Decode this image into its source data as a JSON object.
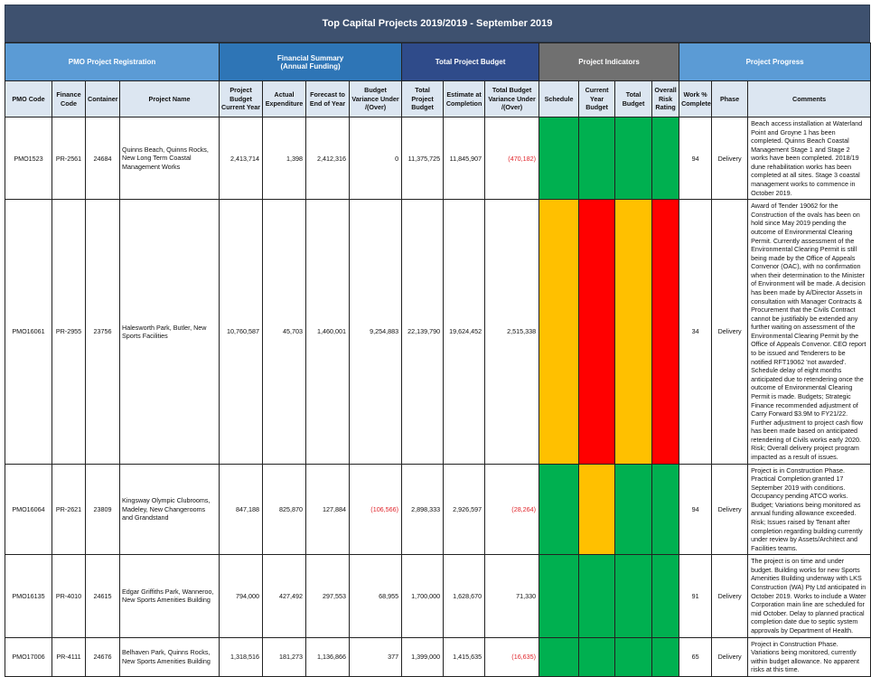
{
  "title": "Top Capital Projects 2019/2019 - September 2019",
  "groups": {
    "pmo": "PMO Project Registration",
    "financial": "Financial Summary\n(Annual Funding)",
    "total": "Total Project Budget",
    "indicators": "Project Indicators",
    "progress": "Project Progress"
  },
  "columns": {
    "pmo_code": "PMO Code",
    "finance_code": "Finance Code",
    "container": "Container",
    "project_name": "Project Name",
    "project_budget": "Project Budget Current Year",
    "actual_expenditure": "Actual Expenditure",
    "forecast": "Forecast to End of Year",
    "budget_variance": "Budget Variance Under /(Over)",
    "total_budget": "Total Project Budget",
    "estimate": "Estimate at Completion",
    "total_variance": "Total Budget Variance Under /(Over)",
    "schedule": "Schedule",
    "current_year_budget": "Current Year Budget",
    "total_budget_ind": "Total Budget",
    "overall_risk": "Overall Risk Rating",
    "work_complete": "Work % Complete",
    "phase": "Phase",
    "comments": "Comments"
  },
  "indicator_colors": {
    "green": "#00b050",
    "amber": "#ffc000",
    "red": "#ff0000"
  },
  "rows": [
    {
      "pmo_code": "PMO1523",
      "finance_code": "PR-2561",
      "container": "24684",
      "project_name": "Quinns Beach, Quinns Rocks, New Long Term Coastal Management Works",
      "project_budget": "2,413,714",
      "actual_expenditure": "1,398",
      "forecast": "2,412,316",
      "budget_variance": "0",
      "total_budget": "11,375,725",
      "estimate": "11,845,907",
      "total_variance": "(470,182)",
      "indicators": [
        "green",
        "green",
        "green",
        "green"
      ],
      "work_complete": "94",
      "phase": "Delivery",
      "comments": "Beach access installation at Waterland Point and Groyne 1 has been completed. Quinns Beach Coastal Management Stage 1 and Stage 2 works have been completed. 2018/19 dune rehabilitation works has been completed at all sites. Stage 3 coastal management works to commence in October 2019."
    },
    {
      "pmo_code": "PMO16061",
      "finance_code": "PR-2955",
      "container": "23756",
      "project_name": "Halesworth Park, Butler, New Sports Facilities",
      "project_budget": "10,760,587",
      "actual_expenditure": "45,703",
      "forecast": "1,460,001",
      "budget_variance": "9,254,883",
      "total_budget": "22,139,790",
      "estimate": "19,624,452",
      "total_variance": "2,515,338",
      "indicators": [
        "amber",
        "red",
        "amber",
        "red"
      ],
      "work_complete": "34",
      "phase": "Delivery",
      "comments": "Award of Tender 19062 for the Construction of the ovals has been on hold since May 2019 pending the outcome of Environmental Clearing Permit. Currently assessment of the Environmental Clearing Permit is still being made by the Office of Appeals Convenor (OAC), with no confirmation when their determination to the Minister of Environment will be made. A decision has been made by A/Director Assets in consultation with Manager Contracts & Procurement that the Civils Contract cannot be justifiably be extended any further waiting on assessment of the Environmental Clearing Permit by the Office of Appeals Convenor. CEO report to be issued and Tenderers to be notified RFT19062 'not awarded'. Schedule delay of eight months anticipated due to retendering once the outcome of Environmental Clearing Permit is made. Budgets; Strategic Finance recommended adjustment of Carry Forward $3.9M to FY21/22. Further adjustment to project cash flow has been made based on anticipated retendering of Civils works early 2020. Risk; Overall delivery project program impacted as a result of issues."
    },
    {
      "pmo_code": "PMO16064",
      "finance_code": "PR-2621",
      "container": "23809",
      "project_name": "Kingsway Olympic Clubrooms, Madeley, New Changerooms and Grandstand",
      "project_budget": "847,188",
      "actual_expenditure": "825,870",
      "forecast": "127,884",
      "budget_variance": "(106,566)",
      "total_budget": "2,898,333",
      "estimate": "2,926,597",
      "total_variance": "(28,264)",
      "indicators": [
        "green",
        "amber",
        "green",
        "green"
      ],
      "work_complete": "94",
      "phase": "Delivery",
      "comments": "Project is in Construction Phase. Practical Completion granted 17 September 2019 with conditions. Occupancy pending ATCO works. Budget; Variations being monitored as annual funding allowance exceeded. Risk; Issues raised by Tenant after completion regarding building currently under review by Assets/Architect and Facilities teams."
    },
    {
      "pmo_code": "PMO16135",
      "finance_code": "PR-4010",
      "container": "24615",
      "project_name": "Edgar Griffiths Park, Wanneroo, New Sports Amenities Building",
      "project_budget": "794,000",
      "actual_expenditure": "427,492",
      "forecast": "297,553",
      "budget_variance": "68,955",
      "total_budget": "1,700,000",
      "estimate": "1,628,670",
      "total_variance": "71,330",
      "indicators": [
        "green",
        "green",
        "green",
        "green"
      ],
      "work_complete": "91",
      "phase": "Delivery",
      "comments": "The project is on time and under budget. Building works for new Sports Amenities Building underway with LKS Construction (WA) Pty Ltd anticipated in October 2019. Works to include a Water Corporation main line are scheduled for mid October. Delay to planned practical completion date due to septic system approvals by Department of Health."
    },
    {
      "pmo_code": "PMO17006",
      "finance_code": "PR-4111",
      "container": "24676",
      "project_name": "Belhaven Park, Quinns Rocks, New Sports Amenities Building",
      "project_budget": "1,318,516",
      "actual_expenditure": "181,273",
      "forecast": "1,136,866",
      "budget_variance": "377",
      "total_budget": "1,399,000",
      "estimate": "1,415,635",
      "total_variance": "(16,635)",
      "indicators": [
        "green",
        "green",
        "green",
        "green"
      ],
      "work_complete": "65",
      "phase": "Delivery",
      "comments": "Project in Construction Phase. Variations being monitored, currently within budget allowance. No apparent risks at this time."
    }
  ]
}
